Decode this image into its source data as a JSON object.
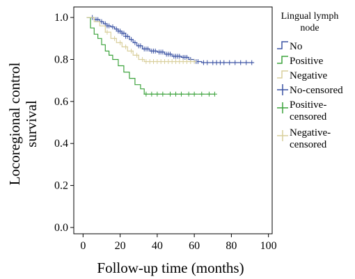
{
  "chart_data": {
    "type": "line",
    "xlabel": "Follow-up time (months)",
    "ylabel_lines": [
      "Locoregional control",
      "survival"
    ],
    "xlim": [
      -5,
      102
    ],
    "ylim": [
      -0.03,
      1.05
    ],
    "xticks": [
      0,
      20,
      40,
      60,
      80,
      100
    ],
    "yticks": [
      0.0,
      0.2,
      0.4,
      0.6,
      0.8,
      1.0
    ],
    "ytick_labels": [
      "0.0",
      "0.2",
      "0.4",
      "0.6",
      "0.8",
      "1.0"
    ],
    "grid": false,
    "legend_position": "right",
    "legend": {
      "title_lines": [
        "Lingual lymph",
        "node"
      ],
      "entries": [
        {
          "label_lines": [
            "No"
          ],
          "kind": "line",
          "color": "#3a52a3"
        },
        {
          "label_lines": [
            "Positive"
          ],
          "kind": "line",
          "color": "#3ca33c"
        },
        {
          "label_lines": [
            "Negative"
          ],
          "kind": "line",
          "color": "#d9cf9c"
        },
        {
          "label_lines": [
            "No-censored"
          ],
          "kind": "plus",
          "color": "#3a52a3"
        },
        {
          "label_lines": [
            "Positive-",
            "censored"
          ],
          "kind": "plus",
          "color": "#3ca33c"
        },
        {
          "label_lines": [
            "Negative-",
            "censored"
          ],
          "kind": "plus",
          "color": "#d9cf9c"
        }
      ]
    },
    "series": [
      {
        "name": "No",
        "color": "#3a52a3",
        "steps": [
          [
            2,
            1.0
          ],
          [
            6,
            0.99
          ],
          [
            9,
            0.98
          ],
          [
            11,
            0.97
          ],
          [
            13,
            0.96
          ],
          [
            15,
            0.955
          ],
          [
            17,
            0.945
          ],
          [
            19,
            0.935
          ],
          [
            21,
            0.925
          ],
          [
            23,
            0.91
          ],
          [
            25,
            0.895
          ],
          [
            27,
            0.88
          ],
          [
            29,
            0.865
          ],
          [
            32,
            0.85
          ],
          [
            36,
            0.84
          ],
          [
            40,
            0.835
          ],
          [
            44,
            0.825
          ],
          [
            48,
            0.815
          ],
          [
            53,
            0.81
          ],
          [
            57,
            0.8
          ],
          [
            60,
            0.79
          ],
          [
            64,
            0.785
          ],
          [
            92,
            0.785
          ]
        ],
        "censored": [
          5,
          7,
          8,
          10,
          12,
          13,
          14,
          16,
          18,
          19,
          20,
          21,
          22,
          23,
          24,
          26,
          28,
          30,
          31,
          33,
          34,
          35,
          37,
          38,
          39,
          41,
          42,
          43,
          45,
          46,
          47,
          49,
          50,
          51,
          52,
          54,
          55,
          56,
          58,
          61,
          62,
          65,
          67,
          70,
          72,
          74,
          76,
          79,
          82,
          85,
          88,
          91
        ]
      },
      {
        "name": "Positive",
        "color": "#3ca33c",
        "steps": [
          [
            2,
            1.0
          ],
          [
            4,
            0.95
          ],
          [
            6,
            0.92
          ],
          [
            8,
            0.9
          ],
          [
            10,
            0.87
          ],
          [
            12,
            0.84
          ],
          [
            14,
            0.82
          ],
          [
            16,
            0.8
          ],
          [
            19,
            0.77
          ],
          [
            22,
            0.74
          ],
          [
            25,
            0.71
          ],
          [
            28,
            0.68
          ],
          [
            31,
            0.66
          ],
          [
            33,
            0.635
          ],
          [
            71,
            0.635
          ]
        ],
        "censored": [
          34,
          37,
          40,
          43,
          47,
          50,
          53,
          57,
          60,
          64,
          68,
          71
        ]
      },
      {
        "name": "Negative",
        "color": "#d9cf9c",
        "steps": [
          [
            2,
            1.0
          ],
          [
            6,
            0.98
          ],
          [
            9,
            0.96
          ],
          [
            12,
            0.93
          ],
          [
            15,
            0.9
          ],
          [
            18,
            0.88
          ],
          [
            21,
            0.86
          ],
          [
            24,
            0.84
          ],
          [
            27,
            0.82
          ],
          [
            30,
            0.8
          ],
          [
            33,
            0.79
          ],
          [
            60,
            0.79
          ]
        ],
        "censored": [
          13,
          17,
          20,
          23,
          26,
          29,
          32,
          34,
          36,
          38,
          40,
          42,
          44,
          46,
          48,
          50,
          52,
          54,
          56,
          58,
          60
        ]
      }
    ]
  }
}
